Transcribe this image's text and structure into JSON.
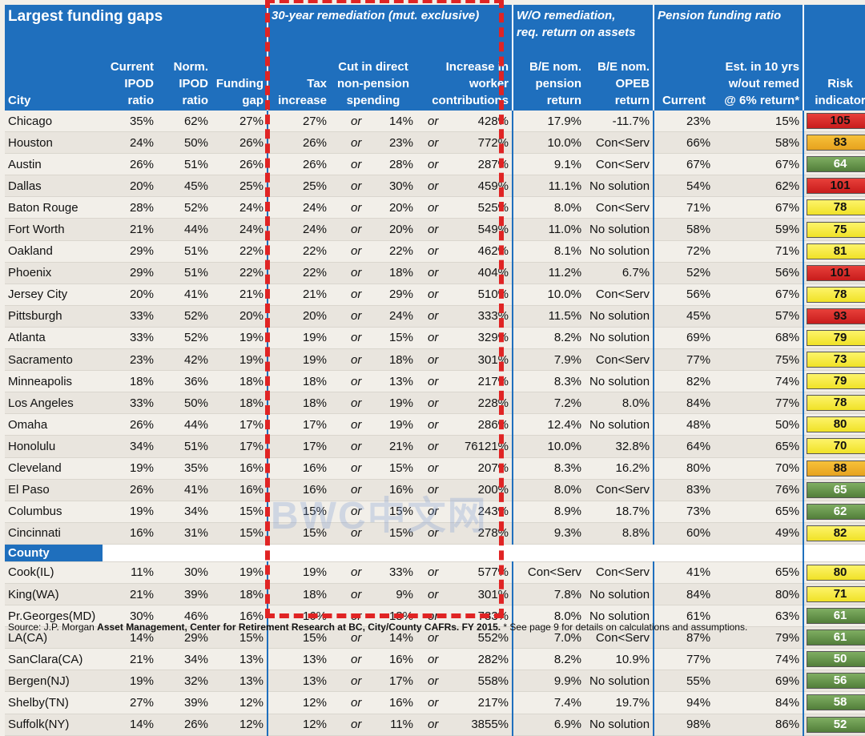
{
  "headers": {
    "title": "Largest funding gaps",
    "remediation_group": "30-year remediation (mut. exclusive)",
    "wo_group_line1": "W/O remediation,",
    "wo_group_line2": "req. return on assets",
    "pfr_group": "Pension funding ratio",
    "city": "City",
    "current_ipod": [
      "Current",
      "IPOD",
      "ratio"
    ],
    "norm_ipod": [
      "Norm.",
      "IPOD",
      "ratio"
    ],
    "funding_gap": [
      "Funding",
      "gap"
    ],
    "tax_increase": [
      "Tax",
      "increase"
    ],
    "cut_spending": [
      "Cut in direct",
      "non-pension",
      "spending"
    ],
    "worker_contrib": [
      "Increase in",
      "worker",
      "contributions"
    ],
    "be_pension": [
      "B/E nom.",
      "pension",
      "return"
    ],
    "be_opeb": [
      "B/E nom.",
      "OPEB",
      "return"
    ],
    "current_ratio": "Current",
    "est_10yrs": [
      "Est. in 10 yrs",
      "w/out remed",
      "@ 6% return*"
    ],
    "risk": [
      "Risk",
      "indicator"
    ]
  },
  "or_word": "or",
  "county_label": "County",
  "cities": [
    {
      "name": "Chicago",
      "cur": "35%",
      "norm": "62%",
      "gap": "27%",
      "tax": "27%",
      "cut": "14%",
      "contrib": "428%",
      "pension": "17.9%",
      "opeb": "-11.7%",
      "current": "23%",
      "est": "15%",
      "risk": "105",
      "level": "red"
    },
    {
      "name": "Houston",
      "cur": "24%",
      "norm": "50%",
      "gap": "26%",
      "tax": "26%",
      "cut": "23%",
      "contrib": "772%",
      "pension": "10.0%",
      "opeb": "Con<Serv",
      "current": "66%",
      "est": "58%",
      "risk": "83",
      "level": "orange"
    },
    {
      "name": "Austin",
      "cur": "26%",
      "norm": "51%",
      "gap": "26%",
      "tax": "26%",
      "cut": "28%",
      "contrib": "287%",
      "pension": "9.1%",
      "opeb": "Con<Serv",
      "current": "67%",
      "est": "67%",
      "risk": "64",
      "level": "green"
    },
    {
      "name": "Dallas",
      "cur": "20%",
      "norm": "45%",
      "gap": "25%",
      "tax": "25%",
      "cut": "30%",
      "contrib": "459%",
      "pension": "11.1%",
      "opeb": "No solution",
      "current": "54%",
      "est": "62%",
      "risk": "101",
      "level": "red"
    },
    {
      "name": "Baton Rouge",
      "cur": "28%",
      "norm": "52%",
      "gap": "24%",
      "tax": "24%",
      "cut": "20%",
      "contrib": "525%",
      "pension": "8.0%",
      "opeb": "Con<Serv",
      "current": "71%",
      "est": "67%",
      "risk": "78",
      "level": "yellow"
    },
    {
      "name": "Fort Worth",
      "cur": "21%",
      "norm": "44%",
      "gap": "24%",
      "tax": "24%",
      "cut": "20%",
      "contrib": "549%",
      "pension": "11.0%",
      "opeb": "No solution",
      "current": "58%",
      "est": "59%",
      "risk": "75",
      "level": "yellow"
    },
    {
      "name": "Oakland",
      "cur": "29%",
      "norm": "51%",
      "gap": "22%",
      "tax": "22%",
      "cut": "22%",
      "contrib": "462%",
      "pension": "8.1%",
      "opeb": "No solution",
      "current": "72%",
      "est": "71%",
      "risk": "81",
      "level": "yellow"
    },
    {
      "name": "Phoenix",
      "cur": "29%",
      "norm": "51%",
      "gap": "22%",
      "tax": "22%",
      "cut": "18%",
      "contrib": "404%",
      "pension": "11.2%",
      "opeb": "6.7%",
      "current": "52%",
      "est": "56%",
      "risk": "101",
      "level": "red"
    },
    {
      "name": "Jersey City",
      "cur": "20%",
      "norm": "41%",
      "gap": "21%",
      "tax": "21%",
      "cut": "29%",
      "contrib": "510%",
      "pension": "10.0%",
      "opeb": "Con<Serv",
      "current": "56%",
      "est": "67%",
      "risk": "78",
      "level": "yellow"
    },
    {
      "name": "Pittsburgh",
      "cur": "33%",
      "norm": "52%",
      "gap": "20%",
      "tax": "20%",
      "cut": "24%",
      "contrib": "333%",
      "pension": "11.5%",
      "opeb": "No solution",
      "current": "45%",
      "est": "57%",
      "risk": "93",
      "level": "red"
    },
    {
      "name": "Atlanta",
      "cur": "33%",
      "norm": "52%",
      "gap": "19%",
      "tax": "19%",
      "cut": "15%",
      "contrib": "329%",
      "pension": "8.2%",
      "opeb": "No solution",
      "current": "69%",
      "est": "68%",
      "risk": "79",
      "level": "yellow"
    },
    {
      "name": "Sacramento",
      "cur": "23%",
      "norm": "42%",
      "gap": "19%",
      "tax": "19%",
      "cut": "18%",
      "contrib": "301%",
      "pension": "7.9%",
      "opeb": "Con<Serv",
      "current": "77%",
      "est": "75%",
      "risk": "73",
      "level": "yellow"
    },
    {
      "name": "Minneapolis",
      "cur": "18%",
      "norm": "36%",
      "gap": "18%",
      "tax": "18%",
      "cut": "13%",
      "contrib": "217%",
      "pension": "8.3%",
      "opeb": "No solution",
      "current": "82%",
      "est": "74%",
      "risk": "79",
      "level": "yellow"
    },
    {
      "name": "Los Angeles",
      "cur": "33%",
      "norm": "50%",
      "gap": "18%",
      "tax": "18%",
      "cut": "19%",
      "contrib": "228%",
      "pension": "7.2%",
      "opeb": "8.0%",
      "current": "84%",
      "est": "77%",
      "risk": "78",
      "level": "yellow"
    },
    {
      "name": "Omaha",
      "cur": "26%",
      "norm": "44%",
      "gap": "17%",
      "tax": "17%",
      "cut": "19%",
      "contrib": "286%",
      "pension": "12.4%",
      "opeb": "No solution",
      "current": "48%",
      "est": "50%",
      "risk": "80",
      "level": "yellow"
    },
    {
      "name": "Honolulu",
      "cur": "34%",
      "norm": "51%",
      "gap": "17%",
      "tax": "17%",
      "cut": "21%",
      "contrib": "76121%",
      "pension": "10.0%",
      "opeb": "32.8%",
      "current": "64%",
      "est": "65%",
      "risk": "70",
      "level": "yellow"
    },
    {
      "name": "Cleveland",
      "cur": "19%",
      "norm": "35%",
      "gap": "16%",
      "tax": "16%",
      "cut": "15%",
      "contrib": "207%",
      "pension": "8.3%",
      "opeb": "16.2%",
      "current": "80%",
      "est": "70%",
      "risk": "88",
      "level": "orange"
    },
    {
      "name": "El Paso",
      "cur": "26%",
      "norm": "41%",
      "gap": "16%",
      "tax": "16%",
      "cut": "16%",
      "contrib": "200%",
      "pension": "8.0%",
      "opeb": "Con<Serv",
      "current": "83%",
      "est": "76%",
      "risk": "65",
      "level": "green"
    },
    {
      "name": "Columbus",
      "cur": "19%",
      "norm": "34%",
      "gap": "15%",
      "tax": "15%",
      "cut": "15%",
      "contrib": "243%",
      "pension": "8.9%",
      "opeb": "18.7%",
      "current": "73%",
      "est": "65%",
      "risk": "62",
      "level": "green"
    },
    {
      "name": "Cincinnati",
      "cur": "16%",
      "norm": "31%",
      "gap": "15%",
      "tax": "15%",
      "cut": "15%",
      "contrib": "278%",
      "pension": "9.3%",
      "opeb": "8.8%",
      "current": "60%",
      "est": "49%",
      "risk": "82",
      "level": "yellow"
    }
  ],
  "counties": [
    {
      "name": "Cook(IL)",
      "cur": "11%",
      "norm": "30%",
      "gap": "19%",
      "tax": "19%",
      "cut": "33%",
      "contrib": "577%",
      "pension": "Con<Serv",
      "opeb": "Con<Serv",
      "current": "41%",
      "est": "65%",
      "risk": "80",
      "level": "yellow"
    },
    {
      "name": "King(WA)",
      "cur": "21%",
      "norm": "39%",
      "gap": "18%",
      "tax": "18%",
      "cut": "9%",
      "contrib": "301%",
      "pension": "7.8%",
      "opeb": "No solution",
      "current": "84%",
      "est": "80%",
      "risk": "71",
      "level": "yellow"
    },
    {
      "name": "Pr.Georges(MD)",
      "cur": "30%",
      "norm": "46%",
      "gap": "16%",
      "tax": "16%",
      "cut": "18%",
      "contrib": "783%",
      "pension": "8.0%",
      "opeb": "No solution",
      "current": "61%",
      "est": "63%",
      "risk": "61",
      "level": "green"
    },
    {
      "name": "LA(CA)",
      "cur": "14%",
      "norm": "29%",
      "gap": "15%",
      "tax": "15%",
      "cut": "14%",
      "contrib": "552%",
      "pension": "7.0%",
      "opeb": "Con<Serv",
      "current": "87%",
      "est": "79%",
      "risk": "61",
      "level": "green"
    },
    {
      "name": "SanClara(CA)",
      "cur": "21%",
      "norm": "34%",
      "gap": "13%",
      "tax": "13%",
      "cut": "16%",
      "contrib": "282%",
      "pension": "8.2%",
      "opeb": "10.9%",
      "current": "77%",
      "est": "74%",
      "risk": "50",
      "level": "green"
    },
    {
      "name": "Bergen(NJ)",
      "cur": "19%",
      "norm": "32%",
      "gap": "13%",
      "tax": "13%",
      "cut": "17%",
      "contrib": "558%",
      "pension": "9.9%",
      "opeb": "No solution",
      "current": "55%",
      "est": "69%",
      "risk": "56",
      "level": "green"
    },
    {
      "name": "Shelby(TN)",
      "cur": "27%",
      "norm": "39%",
      "gap": "12%",
      "tax": "12%",
      "cut": "16%",
      "contrib": "217%",
      "pension": "7.4%",
      "opeb": "19.7%",
      "current": "94%",
      "est": "84%",
      "risk": "58",
      "level": "green"
    },
    {
      "name": "Suffolk(NY)",
      "cur": "14%",
      "norm": "26%",
      "gap": "12%",
      "tax": "12%",
      "cut": "11%",
      "contrib": "3855%",
      "pension": "6.9%",
      "opeb": "No solution",
      "current": "98%",
      "est": "86%",
      "risk": "52",
      "level": "green"
    }
  ],
  "source": {
    "prefix": "Source: J.P. Morgan ",
    "bold": "Asset Management, Center for Retirement Research at BC, City/County CAFRs. FY 2015.",
    "suffix": " * See page 9 for details on calculations and assumptions."
  },
  "watermark": "BWC中文网"
}
